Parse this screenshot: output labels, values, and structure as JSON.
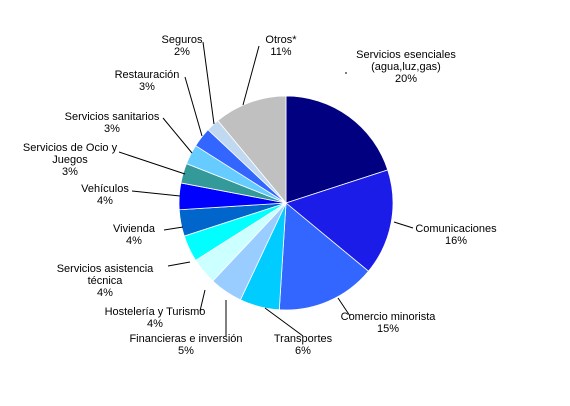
{
  "chart_data": {
    "type": "pie",
    "title": "",
    "slices": [
      {
        "label": "Servicios esenciales (agua,luz,gas)",
        "label_lines": [
          "Servicios esenciales",
          "(agua,luz,gas)"
        ],
        "value": 20,
        "value_label": "20%",
        "color": "#000080"
      },
      {
        "label": "Comunicaciones",
        "label_lines": [
          "Comunicaciones"
        ],
        "value": 16,
        "value_label": "16%",
        "color": "#1C1CE8"
      },
      {
        "label": "Comercio minorista",
        "label_lines": [
          "Comercio minorista"
        ],
        "value": 15,
        "value_label": "15%",
        "color": "#3366FF"
      },
      {
        "label": "Transportes",
        "label_lines": [
          "Transportes"
        ],
        "value": 6,
        "value_label": "6%",
        "color": "#00CCFF"
      },
      {
        "label": "Financieras e inversión",
        "label_lines": [
          "Financieras e inversión"
        ],
        "value": 5,
        "value_label": "5%",
        "color": "#99CCFF"
      },
      {
        "label": "Hostelería y Turismo",
        "label_lines": [
          "Hostelería y Turismo"
        ],
        "value": 4,
        "value_label": "4%",
        "color": "#CCFFFF"
      },
      {
        "label": "Servicios asistencia técnica",
        "label_lines": [
          "Servicios asistencia",
          "técnica"
        ],
        "value": 4,
        "value_label": "4%",
        "color": "#00FFFF"
      },
      {
        "label": "Vivienda",
        "label_lines": [
          "Vivienda"
        ],
        "value": 4,
        "value_label": "4%",
        "color": "#0066CC"
      },
      {
        "label": "Vehículos",
        "label_lines": [
          "Vehículos"
        ],
        "value": 4,
        "value_label": "4%",
        "color": "#0000FF"
      },
      {
        "label": "Servicios de Ocio y Juegos",
        "label_lines": [
          "Servicios de Ocio y",
          "Juegos"
        ],
        "value": 3,
        "value_label": "3%",
        "color": "#339999"
      },
      {
        "label": "Servicios sanitarios",
        "label_lines": [
          "Servicios sanitarios"
        ],
        "value": 3,
        "value_label": "3%",
        "color": "#66CCFF"
      },
      {
        "label": "Restauración",
        "label_lines": [
          "Restauración"
        ],
        "value": 3,
        "value_label": "3%",
        "color": "#3366FF"
      },
      {
        "label": "Seguros",
        "label_lines": [
          "Seguros"
        ],
        "value": 2,
        "value_label": "2%",
        "color": "#C0D8F0"
      },
      {
        "label": "Otros*",
        "label_lines": [
          "Otros*"
        ],
        "value": 11,
        "value_label": "11%",
        "color": "#C0C0C0"
      }
    ],
    "legend": "none"
  }
}
